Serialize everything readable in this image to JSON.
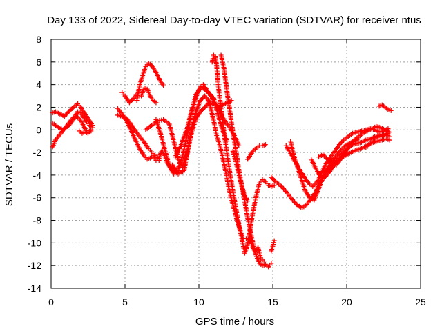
{
  "chart_data": {
    "type": "scatter",
    "title": "Day 133 of 2022, Sidereal Day-to-day VTEC variation (SDTVAR) for receiver ntus",
    "xlabel": "GPS time / hours",
    "ylabel": "SDTVAR / TECUs",
    "xlim": [
      0,
      25
    ],
    "ylim": [
      -14,
      8
    ],
    "xticks": [
      0,
      5,
      10,
      15,
      20,
      25
    ],
    "yticks": [
      -14,
      -12,
      -10,
      -8,
      -6,
      -4,
      -2,
      0,
      2,
      4,
      6,
      8
    ],
    "grid": true,
    "marker": "+",
    "marker_color": "#ff0000",
    "series": [
      {
        "x": [
          0.1,
          0.3,
          0.6,
          0.9,
          1.2,
          1.5,
          1.8,
          2.0,
          2.2,
          2.4,
          2.6,
          2.8
        ],
        "y": [
          1.5,
          1.6,
          1.4,
          1.2,
          1.6,
          2.0,
          2.3,
          2.0,
          1.6,
          1.2,
          0.8,
          0.4
        ]
      },
      {
        "x": [
          0.1,
          0.4,
          0.8,
          1.2,
          1.5,
          1.8,
          2.0,
          2.2,
          2.4,
          2.6,
          2.8
        ],
        "y": [
          0.6,
          0.3,
          0.0,
          0.4,
          0.9,
          1.6,
          1.5,
          1.1,
          0.7,
          0.4,
          0.2
        ]
      },
      {
        "x": [
          0.1,
          0.3,
          0.6,
          0.9,
          1.2,
          1.5,
          1.7,
          1.9,
          2.1,
          2.3,
          2.5,
          2.7
        ],
        "y": [
          -1.5,
          -0.9,
          -0.4,
          0.1,
          0.6,
          1.1,
          1.2,
          1.0,
          0.6,
          0.1,
          -0.2,
          0.0
        ]
      },
      {
        "x": [
          1.9,
          2.1,
          2.3,
          2.5,
          2.7
        ],
        "y": [
          -0.1,
          -0.3,
          -0.2,
          -0.3,
          -0.1
        ]
      },
      {
        "x": [
          4.5,
          4.8,
          5.1,
          5.4,
          5.7,
          6.0,
          6.3,
          6.5,
          6.7,
          6.9,
          7.1,
          7.3
        ],
        "y": [
          1.9,
          1.4,
          0.8,
          0.0,
          -0.9,
          -1.7,
          -2.3,
          -2.6,
          -2.5,
          -2.3,
          -2.7,
          -2.7
        ]
      },
      {
        "x": [
          4.8,
          5.0,
          5.3,
          5.6,
          5.9,
          6.1,
          6.3,
          6.5,
          6.7,
          6.9,
          7.1
        ],
        "y": [
          3.3,
          3.0,
          2.4,
          2.8,
          3.3,
          3.0,
          3.7,
          3.6,
          3.0,
          2.6,
          2.4
        ]
      },
      {
        "x": [
          5.8,
          6.0,
          6.2,
          6.4,
          6.6,
          6.8,
          7.0,
          7.2,
          7.4,
          7.6
        ],
        "y": [
          2.6,
          4.0,
          4.8,
          5.6,
          5.9,
          5.7,
          5.3,
          4.8,
          4.3,
          3.9
        ]
      },
      {
        "x": [
          4.5,
          4.8,
          5.1,
          5.4,
          5.7,
          6.0,
          6.3,
          6.5,
          6.7,
          6.9,
          7.1,
          7.3,
          7.5,
          7.7,
          7.9,
          8.1,
          8.3,
          8.5,
          8.7
        ],
        "y": [
          1.3,
          1.2,
          1.0,
          0.5,
          -0.1,
          -0.6,
          -1.1,
          -1.5,
          -1.8,
          -2.1,
          -2.4,
          -2.5,
          -1.8,
          -2.4,
          -3.0,
          -3.4,
          -3.7,
          -3.8,
          -3.6
        ]
      },
      {
        "x": [
          6.4,
          6.8,
          7.2,
          7.6,
          8.0,
          8.3,
          8.6,
          8.9,
          9.2,
          9.5,
          9.8,
          10.1,
          10.4,
          10.7,
          11.0,
          11.3,
          11.6,
          11.9,
          12.2
        ],
        "y": [
          0.0,
          0.4,
          0.8,
          0.9,
          0.5,
          -1.0,
          -2.6,
          -3.3,
          -2.0,
          -0.3,
          1.0,
          1.6,
          2.0,
          2.4,
          2.3,
          2.1,
          2.2,
          2.4,
          2.6
        ]
      },
      {
        "x": [
          7.1,
          7.4,
          7.7,
          8.0,
          8.3,
          8.6,
          8.9,
          9.2,
          9.5,
          9.8,
          10.1,
          10.4,
          10.7,
          11.0,
          11.3,
          11.6,
          11.9
        ],
        "y": [
          0.9,
          -0.3,
          -1.8,
          -3.2,
          -3.9,
          -3.4,
          -2.3,
          -0.5,
          1.6,
          2.9,
          3.8,
          3.6,
          3.2,
          2.8,
          1.3,
          0.0,
          -1.0
        ]
      },
      {
        "x": [
          8.4,
          8.8,
          9.2,
          9.6,
          9.8,
          10.1,
          10.3,
          10.6,
          10.9,
          11.2,
          11.5,
          11.8,
          12.1,
          12.4,
          12.7
        ],
        "y": [
          -2.4,
          -1.3,
          0.1,
          2.1,
          3.1,
          3.7,
          4.0,
          3.4,
          2.8,
          2.1,
          1.4,
          0.7,
          0.2,
          -0.5,
          -1.4
        ]
      },
      {
        "x": [
          8.2,
          8.6,
          9.0,
          9.3,
          9.5,
          9.8,
          10.1,
          10.4,
          10.7,
          11.0,
          11.2,
          11.4,
          11.6,
          11.8,
          12.0,
          12.2,
          12.4,
          12.6,
          12.8,
          13.0,
          13.2,
          13.4,
          13.6,
          13.8,
          14.0,
          14.2,
          14.4
        ],
        "y": [
          -3.1,
          -3.9,
          -3.6,
          -1.5,
          0.1,
          1.6,
          2.6,
          3.0,
          2.5,
          0.8,
          -0.5,
          -1.3,
          -2.4,
          -3.6,
          -5.0,
          -6.1,
          -7.1,
          -8.1,
          -8.9,
          -9.6,
          -9.6,
          -9.6,
          -10.2,
          -10.8,
          -10.4,
          -11.4,
          -11.6
        ]
      },
      {
        "x": [
          10.9,
          11.0,
          11.1,
          11.2,
          11.3,
          11.5,
          11.7,
          11.9,
          12.1,
          12.3,
          12.5,
          12.7,
          12.9,
          13.1,
          13.3,
          13.5,
          13.7,
          13.9,
          14.1,
          14.3,
          14.5,
          14.7,
          14.9,
          15.1
        ],
        "y": [
          6.0,
          6.6,
          6.5,
          5.7,
          4.0,
          1.9,
          -0.2,
          -2.1,
          -3.8,
          -5.4,
          -6.9,
          -8.3,
          -9.6,
          -10.9,
          -10.1,
          -8.5,
          -7.0,
          -5.7,
          -4.7,
          -4.4,
          -4.6,
          -4.9,
          -5.0,
          -4.9
        ]
      },
      {
        "x": [
          11.5,
          11.7,
          11.9,
          12.1,
          12.3,
          12.5,
          12.7,
          12.9,
          13.1,
          13.3,
          13.5,
          13.7,
          13.9,
          14.1,
          14.3,
          14.5,
          14.7,
          14.9
        ],
        "y": [
          6.6,
          5.4,
          3.4,
          1.6,
          -0.2,
          -1.8,
          -3.5,
          -4.9,
          -6.3,
          -7.8,
          -9.1,
          -10.3,
          -11.2,
          -11.8,
          -12.0,
          -11.9,
          -12.1,
          -11.8
        ]
      },
      {
        "x": [
          12.3,
          12.5,
          12.7,
          12.9,
          13.1,
          13.3
        ],
        "y": [
          -1.9,
          -2.8,
          -3.9,
          -5.0,
          -5.8,
          -6.3
        ]
      },
      {
        "x": [
          13.3,
          13.5,
          13.7,
          13.9,
          14.1,
          14.3,
          14.5
        ],
        "y": [
          -2.6,
          -2.2,
          -1.8,
          -1.6,
          -1.4,
          -1.4,
          -1.3
        ]
      },
      {
        "x": [
          14.9,
          15.0,
          15.1
        ],
        "y": [
          -10.7,
          -10.3,
          -9.8
        ]
      },
      {
        "x": [
          14.9,
          15.2,
          15.5,
          15.8,
          16.1,
          16.4,
          16.7,
          17.0,
          17.3,
          17.6,
          17.9,
          18.2,
          18.5,
          18.8
        ],
        "y": [
          -4.2,
          -4.6,
          -4.9,
          -5.3,
          -5.8,
          -6.3,
          -6.7,
          -6.9,
          -6.6,
          -6.1,
          -5.5,
          -4.6,
          -3.8,
          -3.4
        ]
      },
      {
        "x": [
          16.2,
          16.4,
          16.6,
          16.8,
          17.0,
          17.2,
          17.5,
          17.8,
          18.1,
          18.4,
          18.7,
          19.0,
          19.3,
          19.6,
          19.9,
          20.2,
          20.5,
          20.8
        ],
        "y": [
          -1.0,
          -2.2,
          -3.0,
          -3.8,
          -4.6,
          -5.4,
          -6.0,
          -6.2,
          -5.2,
          -4.2,
          -3.4,
          -2.7,
          -2.3,
          -1.8,
          -1.4,
          -1.2,
          -1.0,
          -0.8
        ]
      },
      {
        "x": [
          15.9,
          16.2,
          16.5,
          16.8,
          17.1,
          17.4,
          17.7,
          18.0,
          18.3,
          18.6,
          18.9,
          19.2,
          19.5,
          19.8,
          20.1,
          20.4,
          20.7,
          21.0,
          21.3,
          21.6,
          21.9,
          22.2,
          22.5,
          22.8
        ],
        "y": [
          -1.4,
          -2.1,
          -2.8,
          -3.5,
          -4.1,
          -4.7,
          -5.0,
          -4.6,
          -3.8,
          -3.0,
          -2.4,
          -1.9,
          -1.3,
          -0.9,
          -0.6,
          -0.3,
          -0.2,
          -0.1,
          0.0,
          0.1,
          0.0,
          -0.2,
          -0.1,
          0.1
        ]
      },
      {
        "x": [
          17.6,
          17.9,
          18.2,
          18.5,
          18.8,
          19.1,
          19.4,
          19.7,
          20.0,
          20.3,
          20.6,
          20.9,
          21.2,
          21.5,
          21.8,
          22.1,
          22.4,
          22.7,
          22.9
        ],
        "y": [
          -2.6,
          -3.4,
          -4.1,
          -4.2,
          -3.8,
          -3.2,
          -2.7,
          -2.4,
          -2.2,
          -2.0,
          -1.8,
          -1.7,
          -1.5,
          -1.3,
          -1.1,
          -1.0,
          -0.9,
          -0.8,
          -0.9
        ]
      },
      {
        "x": [
          18.1,
          18.4,
          18.7,
          19.0,
          19.3,
          19.6,
          19.9,
          20.2,
          20.5,
          20.8,
          21.1,
          21.4,
          21.7,
          22.0,
          22.3,
          22.6,
          22.9
        ],
        "y": [
          -2.4,
          -2.2,
          -2.6,
          -3.0,
          -3.1,
          -2.6,
          -2.0,
          -1.4,
          -0.9,
          -0.6,
          -0.3,
          -0.1,
          0.1,
          0.3,
          0.2,
          0.0,
          -0.2
        ]
      },
      {
        "x": [
          18.6,
          18.9,
          19.2,
          19.5,
          19.8,
          20.1,
          20.4,
          20.7,
          21.0,
          21.3,
          21.6,
          21.9,
          22.2,
          22.5,
          22.8
        ],
        "y": [
          -3.6,
          -3.2,
          -2.7,
          -2.4,
          -2.0,
          -1.6,
          -1.3,
          -1.2,
          -1.1,
          -0.9,
          -0.8,
          -0.6,
          -0.5,
          -0.4,
          -0.3
        ]
      },
      {
        "x": [
          21.3,
          21.5,
          21.7,
          21.9,
          22.1,
          22.3,
          22.5,
          22.7,
          22.9
        ],
        "y": [
          -1.6,
          -1.3,
          -1.0,
          -0.8,
          -0.6,
          -0.6,
          -0.5,
          -0.4,
          -0.6
        ]
      },
      {
        "x": [
          22.2,
          22.4,
          22.6,
          22.8,
          23.0
        ],
        "y": [
          2.1,
          2.2,
          2.0,
          1.8,
          1.7
        ]
      }
    ]
  }
}
